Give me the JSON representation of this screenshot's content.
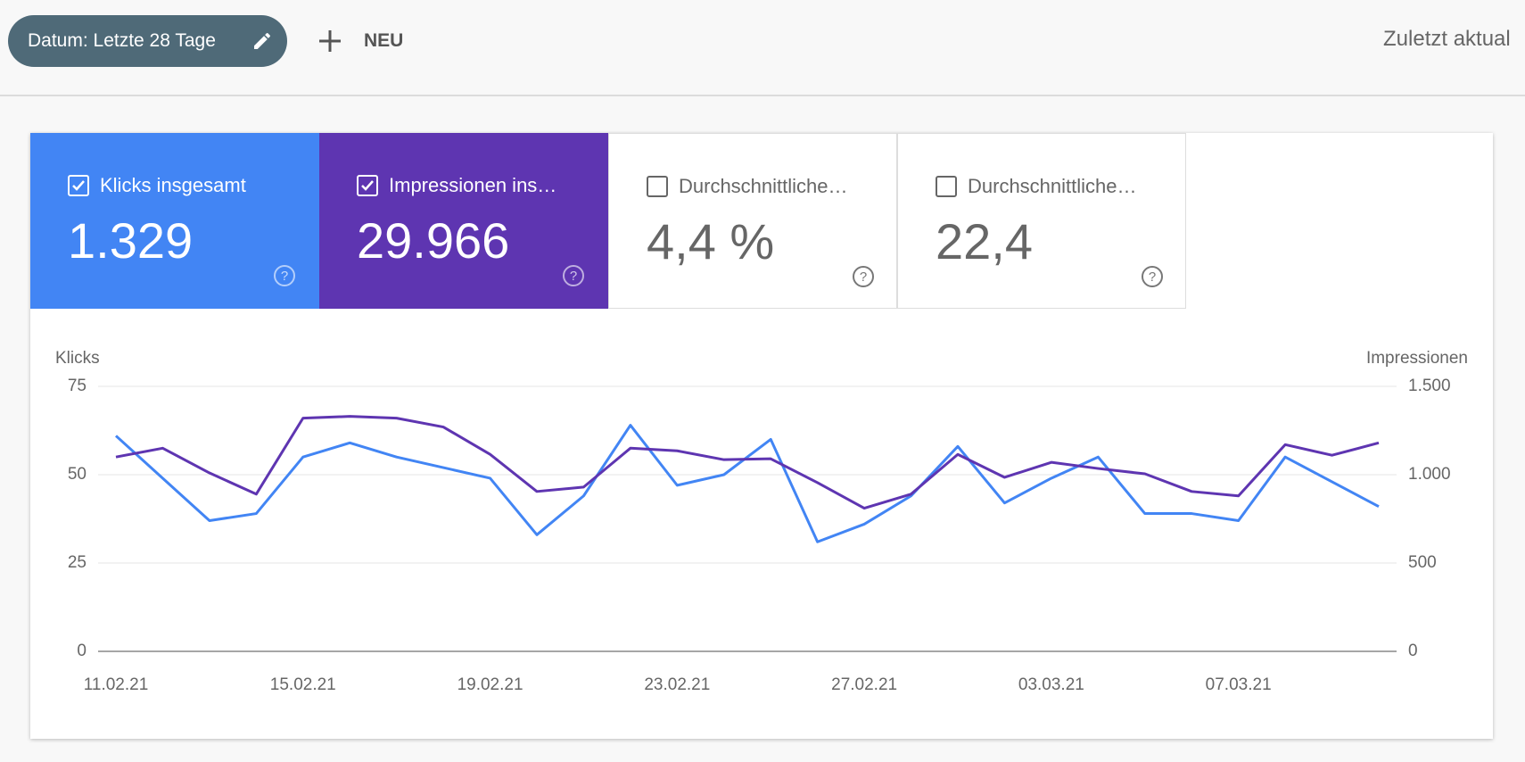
{
  "toolbar": {
    "date_filter": "Datum: Letzte 28 Tage",
    "new_button": "NEU",
    "last_updated": "Zuletzt aktual"
  },
  "metrics": [
    {
      "label": "Klicks insgesamt",
      "value": "1.329",
      "checked": true,
      "color": "#4285f4"
    },
    {
      "label": "Impressionen ins…",
      "value": "29.966",
      "checked": true,
      "color": "#5e35b1"
    },
    {
      "label": "Durchschnittliche…",
      "value": "4,4 %",
      "checked": false,
      "color": "#ffffff"
    },
    {
      "label": "Durchschnittliche…",
      "value": "22,4",
      "checked": false,
      "color": "#ffffff"
    }
  ],
  "chart_data": {
    "type": "line",
    "y_label": "Klicks",
    "y2_label": "Impressionen",
    "categories": [
      "11.02.21",
      null,
      null,
      null,
      "15.02.21",
      null,
      null,
      null,
      "19.02.21",
      null,
      null,
      null,
      "23.02.21",
      null,
      null,
      null,
      "27.02.21",
      null,
      null,
      null,
      "03.03.21",
      null,
      null,
      null,
      "07.03.21",
      null,
      null,
      null
    ],
    "series": [
      {
        "name": "Klicks",
        "color": "#4285f4",
        "values": [
          61,
          49,
          37,
          39,
          55,
          59,
          55,
          52,
          49,
          33,
          44,
          64,
          47,
          50,
          60,
          31,
          36,
          44,
          58,
          42,
          49,
          55,
          39,
          39,
          37,
          55,
          48,
          41
        ]
      },
      {
        "name": "Impressionen",
        "color": "#5e35b1",
        "axis": "y2",
        "values": [
          1100,
          1150,
          1010,
          890,
          1320,
          1330,
          1320,
          1270,
          1115,
          905,
          930,
          1150,
          1135,
          1085,
          1090,
          955,
          810,
          890,
          1115,
          985,
          1070,
          1035,
          1005,
          905,
          880,
          1170,
          1110,
          1180
        ]
      }
    ],
    "ylim": [
      0,
      75
    ],
    "yticks": [
      0,
      25,
      50,
      75
    ],
    "y2lim": [
      0,
      1500
    ],
    "y2ticks": [
      0,
      500,
      {
        "value": 1000,
        "label": "1.000"
      },
      {
        "value": 1500,
        "label": "1.500"
      }
    ],
    "grid": true
  }
}
